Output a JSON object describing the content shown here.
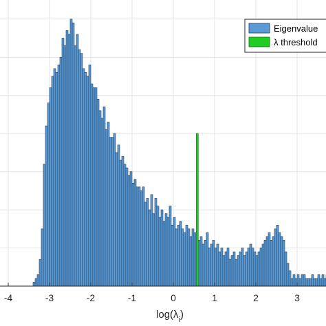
{
  "chart_data": {
    "type": "bar",
    "xlabel": "log(λ_i)",
    "xlim": [
      -4.2,
      3.7
    ],
    "ylim": [
      0,
      75
    ],
    "grid": true,
    "legend_position": "top-right",
    "x_ticks": [
      -4,
      -3,
      -2,
      -1,
      0,
      1,
      2,
      3
    ],
    "x_tick_labels": [
      "-4",
      "-3",
      "-2",
      "-1",
      "0",
      "1",
      "2",
      "3"
    ],
    "bin_width": 0.05,
    "series": [
      {
        "name": "Eigenvalue",
        "color": "#5b9bd5",
        "edge_color": "#1f3a5a",
        "bin_start": -3.4,
        "values": [
          1,
          2,
          3,
          7,
          15,
          32,
          42,
          48,
          52,
          55,
          57,
          56,
          58,
          60,
          65,
          63,
          67,
          66,
          70,
          69,
          63,
          66,
          62,
          61,
          57,
          56,
          55,
          58,
          53,
          52,
          52,
          49,
          46,
          44,
          47,
          41,
          43,
          39,
          39,
          40,
          35,
          37,
          33,
          34,
          32,
          31,
          29,
          30,
          27,
          28,
          26,
          26,
          25,
          26,
          22,
          23,
          20,
          24,
          19,
          23,
          21,
          18,
          20,
          17,
          19,
          18,
          21,
          16,
          18,
          15,
          16,
          17,
          15,
          14,
          16,
          15,
          13,
          15,
          14,
          14,
          12,
          13,
          11,
          12,
          14,
          10,
          11,
          12,
          10,
          11,
          9,
          10,
          8,
          9,
          10,
          7,
          8,
          9,
          7,
          8,
          9,
          10,
          8,
          9,
          10,
          11,
          10,
          9,
          8,
          9,
          10,
          11,
          12,
          13,
          14,
          12,
          13,
          15,
          16,
          14,
          13,
          12,
          9,
          6,
          4,
          2,
          3,
          2,
          3,
          2,
          3,
          3,
          2,
          2,
          2,
          3,
          2,
          2,
          3,
          2,
          3,
          2,
          3,
          3,
          4,
          4,
          3,
          2,
          1,
          1
        ]
      },
      {
        "name": "λ threshold",
        "color": "#22cc22",
        "edge_color": "#0a7a0a",
        "x": 0.58,
        "value": 40
      }
    ],
    "legend": [
      "Eigenvalue",
      "λ threshold"
    ]
  }
}
